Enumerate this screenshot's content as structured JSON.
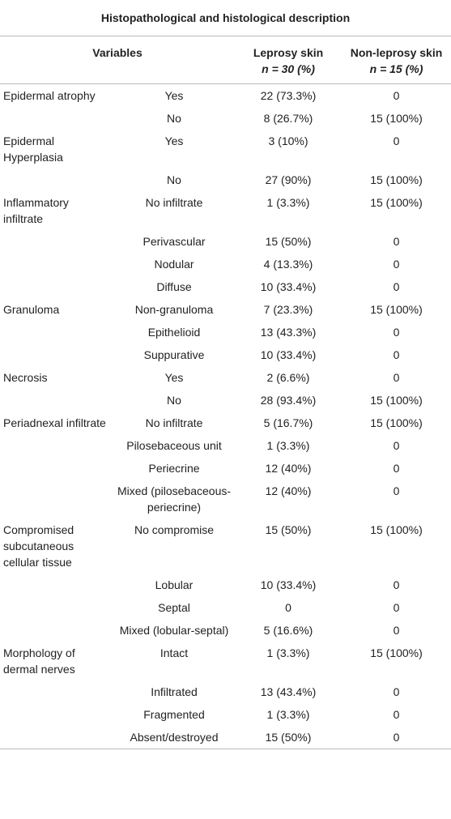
{
  "title": "Histopathological and histological description",
  "header": {
    "variables": "Variables",
    "leprosy": [
      "Leprosy skin",
      "n = 30 (%)"
    ],
    "non_leprosy": [
      "Non-leprosy skin",
      "n = 15 (%)"
    ]
  },
  "groups": [
    {
      "variable": "Epidermal atrophy",
      "rows": [
        [
          "Yes",
          "22 (73.3%)",
          "0"
        ],
        [
          "No",
          "8 (26.7%)",
          "15 (100%)"
        ]
      ]
    },
    {
      "variable": "Epidermal Hyperplasia",
      "rows": [
        [
          "Yes",
          "3 (10%)",
          "0"
        ],
        [
          "No",
          "27 (90%)",
          "15 (100%)"
        ]
      ]
    },
    {
      "variable": "Inflammatory infiltrate",
      "rows": [
        [
          "No infiltrate",
          "1 (3.3%)",
          "15 (100%)"
        ],
        [
          "Perivascular",
          "15 (50%)",
          "0"
        ],
        [
          "Nodular",
          "4 (13.3%)",
          "0"
        ],
        [
          "Diffuse",
          "10 (33.4%)",
          "0"
        ]
      ]
    },
    {
      "variable": "Granuloma",
      "rows": [
        [
          "Non-granuloma",
          "7 (23.3%)",
          "15 (100%)"
        ],
        [
          "Epithelioid",
          "13 (43.3%)",
          "0"
        ],
        [
          "Suppurative",
          "10 (33.4%)",
          "0"
        ]
      ]
    },
    {
      "variable": "Necrosis",
      "rows": [
        [
          "Yes",
          "2 (6.6%)",
          "0"
        ],
        [
          "No",
          "28 (93.4%)",
          "15 (100%)"
        ]
      ]
    },
    {
      "variable": "Periadnexal infiltrate",
      "rows": [
        [
          "No infiltrate",
          "5 (16.7%)",
          "15 (100%)"
        ],
        [
          "Pilosebaceous unit",
          "1 (3.3%)",
          "0"
        ],
        [
          "Periecrine",
          "12 (40%)",
          "0"
        ],
        [
          "Mixed (pilosebaceous-periecrine)",
          "12 (40%)",
          "0"
        ]
      ]
    },
    {
      "variable": "Compromised subcutaneous cellular tissue",
      "rows": [
        [
          "No compromise",
          "15 (50%)",
          "15 (100%)"
        ],
        [
          "Lobular",
          "10 (33.4%)",
          "0"
        ],
        [
          "Septal",
          "0",
          "0"
        ],
        [
          "Mixed (lobular-septal)",
          "5 (16.6%)",
          "0"
        ]
      ]
    },
    {
      "variable": "Morphology of dermal nerves",
      "rows": [
        [
          "Intact",
          "1 (3.3%)",
          "15 (100%)"
        ],
        [
          "Infiltrated",
          "13 (43.4%)",
          "0"
        ],
        [
          "Fragmented",
          "1 (3.3%)",
          "0"
        ],
        [
          "Absent/destroyed",
          "15 (50%)",
          "0"
        ]
      ]
    }
  ]
}
